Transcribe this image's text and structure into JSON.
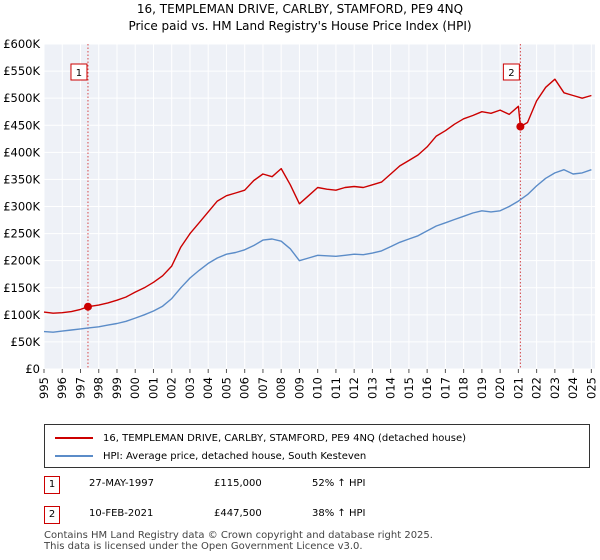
{
  "chart_data": {
    "type": "line",
    "title": "16, TEMPLEMAN DRIVE, CARLBY, STAMFORD, PE9 4NQ",
    "subtitle": "Price paid vs. HM Land Registry's House Price Index (HPI)",
    "xlabel": "",
    "ylabel": "",
    "xlim": [
      1995.0,
      2025.2
    ],
    "ylim": [
      0,
      600000
    ],
    "y_ticks": [
      0,
      50000,
      100000,
      150000,
      200000,
      250000,
      300000,
      350000,
      400000,
      450000,
      500000,
      550000,
      600000
    ],
    "y_tick_labels": [
      "£0",
      "£50K",
      "£100K",
      "£150K",
      "£200K",
      "£250K",
      "£300K",
      "£350K",
      "£400K",
      "£450K",
      "£500K",
      "£550K",
      "£600K"
    ],
    "x_ticks": [
      1995,
      1996,
      1997,
      1998,
      1999,
      2000,
      2001,
      2002,
      2003,
      2004,
      2005,
      2006,
      2007,
      2008,
      2009,
      2010,
      2011,
      2012,
      2013,
      2014,
      2015,
      2016,
      2017,
      2018,
      2019,
      2020,
      2021,
      2022,
      2023,
      2024,
      2025
    ],
    "x_tick_labels": [
      "1995",
      "1996",
      "1997",
      "1998",
      "1999",
      "2000",
      "2001",
      "2002",
      "2003",
      "2004",
      "2005",
      "2006",
      "2007",
      "2008",
      "2009",
      "2010",
      "2011",
      "2012",
      "2013",
      "2014",
      "2015",
      "2016",
      "2017",
      "2018",
      "2019",
      "2020",
      "2021",
      "2022",
      "2023",
      "2024",
      "2025"
    ],
    "grid": true,
    "series": [
      {
        "name": "16, TEMPLEMAN DRIVE, CARLBY, STAMFORD, PE9 4NQ (detached house)",
        "color": "#cc0000",
        "x": [
          1995.0,
          1995.5,
          1996.0,
          1996.5,
          1997.0,
          1997.41,
          1998.0,
          1998.5,
          1999.0,
          1999.5,
          2000.0,
          2000.5,
          2001.0,
          2001.5,
          2002.0,
          2002.5,
          2003.0,
          2003.5,
          2004.0,
          2004.5,
          2005.0,
          2005.5,
          2006.0,
          2006.5,
          2007.0,
          2007.5,
          2008.0,
          2008.5,
          2009.0,
          2009.5,
          2010.0,
          2010.5,
          2011.0,
          2011.5,
          2012.0,
          2012.5,
          2013.0,
          2013.5,
          2014.0,
          2014.5,
          2015.0,
          2015.5,
          2016.0,
          2016.5,
          2017.0,
          2017.5,
          2018.0,
          2018.5,
          2019.0,
          2019.5,
          2020.0,
          2020.5,
          2021.0,
          2021.11,
          2021.5,
          2022.0,
          2022.5,
          2023.0,
          2023.5,
          2024.0,
          2024.5,
          2025.0
        ],
        "y": [
          105000,
          103000,
          104000,
          106000,
          110000,
          115000,
          118000,
          122000,
          127000,
          133000,
          142000,
          150000,
          160000,
          172000,
          190000,
          225000,
          250000,
          270000,
          290000,
          310000,
          320000,
          325000,
          330000,
          348000,
          360000,
          355000,
          370000,
          340000,
          305000,
          320000,
          335000,
          332000,
          330000,
          335000,
          337000,
          335000,
          340000,
          345000,
          360000,
          375000,
          385000,
          395000,
          410000,
          430000,
          440000,
          452000,
          462000,
          468000,
          475000,
          472000,
          478000,
          470000,
          485000,
          447500,
          455000,
          495000,
          520000,
          535000,
          510000,
          505000,
          500000,
          505000
        ]
      },
      {
        "name": "HPI: Average price, detached house, South Kesteven",
        "color": "#5b8cc8",
        "x": [
          1995.0,
          1995.5,
          1996.0,
          1996.5,
          1997.0,
          1997.5,
          1998.0,
          1998.5,
          1999.0,
          1999.5,
          2000.0,
          2000.5,
          2001.0,
          2001.5,
          2002.0,
          2002.5,
          2003.0,
          2003.5,
          2004.0,
          2004.5,
          2005.0,
          2005.5,
          2006.0,
          2006.5,
          2007.0,
          2007.5,
          2008.0,
          2008.5,
          2009.0,
          2009.5,
          2010.0,
          2010.5,
          2011.0,
          2011.5,
          2012.0,
          2012.5,
          2013.0,
          2013.5,
          2014.0,
          2014.5,
          2015.0,
          2015.5,
          2016.0,
          2016.5,
          2017.0,
          2017.5,
          2018.0,
          2018.5,
          2019.0,
          2019.5,
          2020.0,
          2020.5,
          2021.0,
          2021.5,
          2022.0,
          2022.5,
          2023.0,
          2023.5,
          2024.0,
          2024.5,
          2025.0
        ],
        "y": [
          69000,
          68000,
          70000,
          72000,
          74000,
          76000,
          78000,
          81000,
          84000,
          88000,
          94000,
          100000,
          107000,
          116000,
          130000,
          150000,
          168000,
          182000,
          195000,
          205000,
          212000,
          215000,
          220000,
          228000,
          238000,
          240000,
          236000,
          222000,
          200000,
          205000,
          210000,
          209000,
          208000,
          210000,
          212000,
          211000,
          214000,
          218000,
          226000,
          234000,
          240000,
          246000,
          255000,
          264000,
          270000,
          276000,
          282000,
          288000,
          292000,
          290000,
          292000,
          300000,
          310000,
          322000,
          338000,
          352000,
          362000,
          368000,
          360000,
          362000,
          368000
        ]
      }
    ],
    "annotations": [
      {
        "label": "1",
        "x": 1997.41,
        "y": 115000
      },
      {
        "label": "2",
        "x": 2021.11,
        "y": 447500
      }
    ]
  },
  "legend": {
    "items": [
      {
        "label": "16, TEMPLEMAN DRIVE, CARLBY, STAMFORD, PE9 4NQ (detached house)",
        "color": "#cc0000"
      },
      {
        "label": "HPI: Average price, detached house, South Kesteven",
        "color": "#5b8cc8"
      }
    ]
  },
  "sales": [
    {
      "num": "1",
      "date": "27-MAY-1997",
      "price": "£115,000",
      "hpi": "52% ↑ HPI"
    },
    {
      "num": "2",
      "date": "10-FEB-2021",
      "price": "£447,500",
      "hpi": "38% ↑ HPI"
    }
  ],
  "footer": {
    "line1": "Contains HM Land Registry data © Crown copyright and database right 2025.",
    "line2": "This data is licensed under the Open Government Licence v3.0."
  }
}
